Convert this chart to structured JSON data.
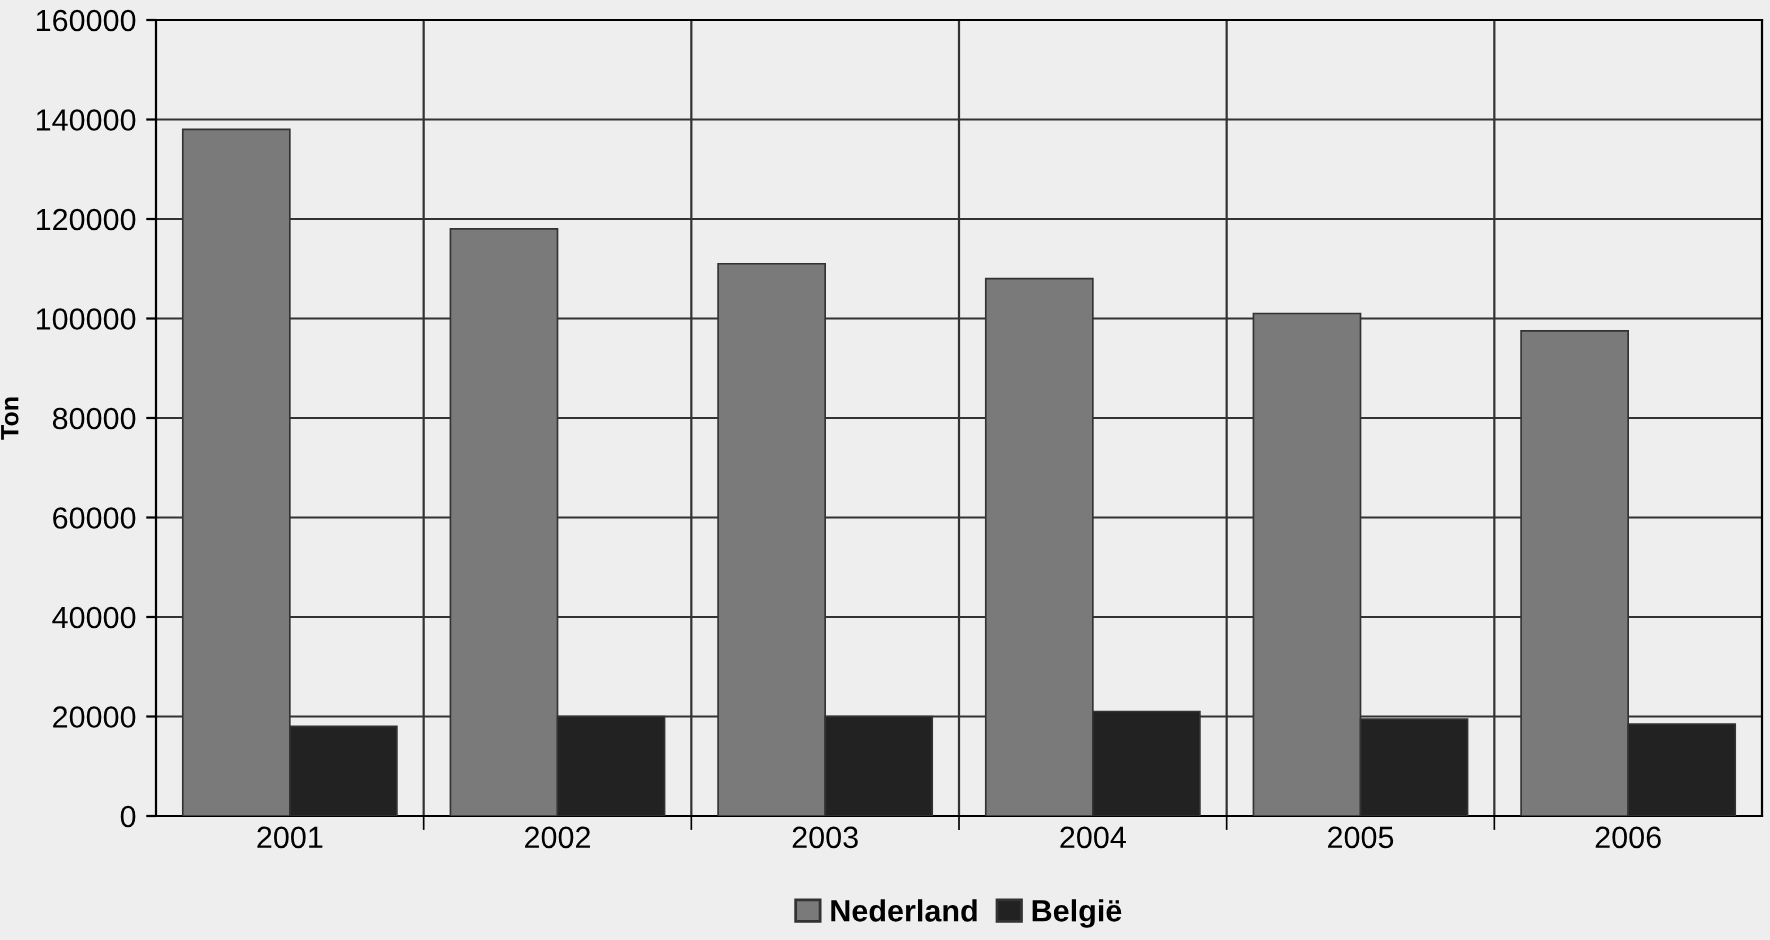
{
  "chart_data": {
    "type": "bar",
    "ylabel": "Ton",
    "categories": [
      "2001",
      "2002",
      "2003",
      "2004",
      "2005",
      "2006"
    ],
    "series": [
      {
        "name": "Nederland",
        "color": "#7a7a7a",
        "values": [
          138000,
          118000,
          111000,
          108000,
          101000,
          97500
        ]
      },
      {
        "name": "België",
        "color": "#222222",
        "values": [
          18000,
          20000,
          20000,
          21000,
          19500,
          18500
        ]
      }
    ],
    "ylim": [
      0,
      160000
    ],
    "yticks": [
      0,
      20000,
      40000,
      60000,
      80000,
      100000,
      120000,
      140000,
      160000
    ],
    "grid": true,
    "legend": "bottom"
  }
}
